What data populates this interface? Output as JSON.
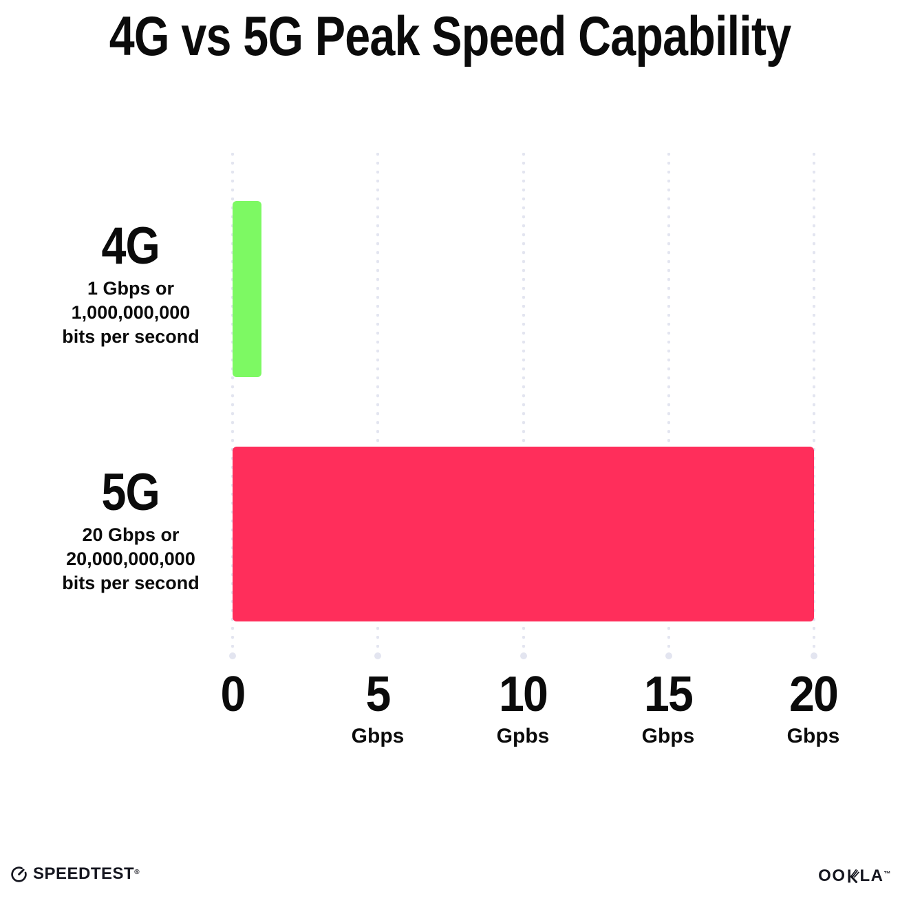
{
  "title": "4G vs 5G Peak Speed Capability",
  "chart_data": {
    "type": "bar",
    "orientation": "horizontal",
    "title": "4G vs 5G Peak Speed Capability",
    "categories": [
      "4G",
      "5G"
    ],
    "values": [
      1,
      20
    ],
    "bar_colors": [
      "#7DF963",
      "#FF2E5B"
    ],
    "xlabel": "Gbps",
    "ylabel": "",
    "xlim": [
      0,
      20
    ],
    "grid": "vertical dotted gridlines at 0, 5, 10, 15, 20 with terminal dots",
    "legend": "none",
    "gridline_color": "#E3E5F0",
    "rows": [
      {
        "category": "4G",
        "value": 1,
        "color": "#7DF963",
        "sublabel_lines": [
          "1 Gbps or",
          "1,000,000,000",
          "bits per second"
        ]
      },
      {
        "category": "5G",
        "value": 20,
        "color": "#FF2E5B",
        "sublabel_lines": [
          "20 Gbps or",
          "20,000,000,000",
          "bits per second"
        ]
      }
    ],
    "x_ticks": [
      {
        "value": 0,
        "label": "0",
        "unit": ""
      },
      {
        "value": 5,
        "label": "5",
        "unit": "Gbps"
      },
      {
        "value": 10,
        "label": "10",
        "unit": "Gpbs"
      },
      {
        "value": 15,
        "label": "15",
        "unit": "Gbps"
      },
      {
        "value": 20,
        "label": "20",
        "unit": "Gbps"
      }
    ]
  },
  "footer": {
    "speedtest": {
      "icon": "speedometer-gauge-icon",
      "label": "SPEEDTEST",
      "mark": "®"
    },
    "ookla": {
      "label": "OOKLA",
      "part_before_k": "OO",
      "part_after_k": "LA",
      "mark": "™"
    }
  },
  "colors": {
    "background": "#FFFFFF",
    "text": "#0B0B0B",
    "bar_4g_green": "#7DF963",
    "bar_5g_pink": "#FF2E5B",
    "gridline": "#E3E5F0",
    "logo_dark": "#15161F"
  }
}
